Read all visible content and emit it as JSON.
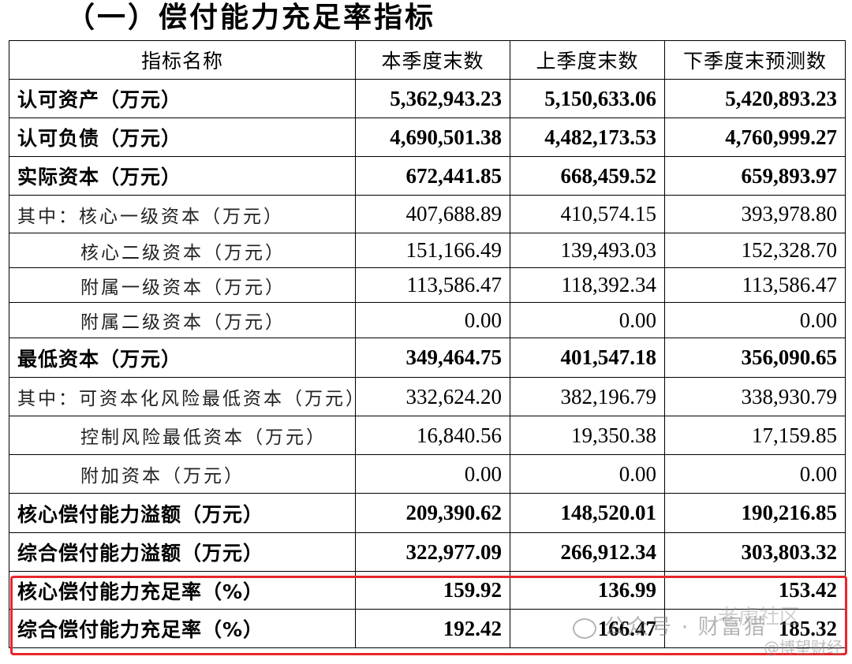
{
  "title": "（一）偿付能力充足率指标",
  "headers": [
    "指标名称",
    "本季度末数",
    "上季度末数",
    "下季度末预测数"
  ],
  "rows": [
    {
      "name": "认可资产（万元）",
      "values": [
        "5,362,943.23",
        "5,150,633.06",
        "5,420,893.23"
      ]
    },
    {
      "name": "认可负债（万元）",
      "values": [
        "4,690,501.38",
        "4,482,173.53",
        "4,760,999.27"
      ]
    },
    {
      "name": "实际资本（万元）",
      "values": [
        "672,441.85",
        "668,459.52",
        "659,893.97"
      ]
    },
    {
      "name": "其中：核心一级资本（万元）",
      "values": [
        "407,688.89",
        "410,574.15",
        "393,978.80"
      ]
    },
    {
      "name": "核心二级资本（万元）",
      "values": [
        "151,166.49",
        "139,493.03",
        "152,328.70"
      ]
    },
    {
      "name": "附属一级资本（万元）",
      "values": [
        "113,586.47",
        "118,392.34",
        "113,586.47"
      ]
    },
    {
      "name": "附属二级资本（万元）",
      "values": [
        "0.00",
        "0.00",
        "0.00"
      ]
    },
    {
      "name": "最低资本（万元）",
      "values": [
        "349,464.75",
        "401,547.18",
        "356,090.65"
      ]
    },
    {
      "name": "其中：可资本化风险最低资本（万元）",
      "values": [
        "332,624.20",
        "382,196.79",
        "338,930.79"
      ]
    },
    {
      "name": "控制风险最低资本（万元）",
      "values": [
        "16,840.56",
        "19,350.38",
        "17,159.85"
      ]
    },
    {
      "name": "附加资本（万元）",
      "values": [
        "0.00",
        "0.00",
        "0.00"
      ]
    },
    {
      "name": "核心偿付能力溢额（万元）",
      "values": [
        "209,390.62",
        "148,520.01",
        "190,216.85"
      ]
    },
    {
      "name": "综合偿付能力溢额（万元）",
      "values": [
        "322,977.09",
        "266,912.34",
        "303,803.32"
      ]
    },
    {
      "name": "核心偿付能力充足率（%）",
      "values": [
        "159.92",
        "136.99",
        "153.42"
      ]
    },
    {
      "name": "综合偿付能力充足率（%）",
      "values": [
        "192.42",
        "166.47",
        "185.32"
      ]
    }
  ],
  "watermark": {
    "main": "公众号 · 财富猎",
    "secondary": "老虎社区",
    "tertiary": "@博望财经"
  },
  "colors": {
    "highlight_border": "#e8262a"
  }
}
